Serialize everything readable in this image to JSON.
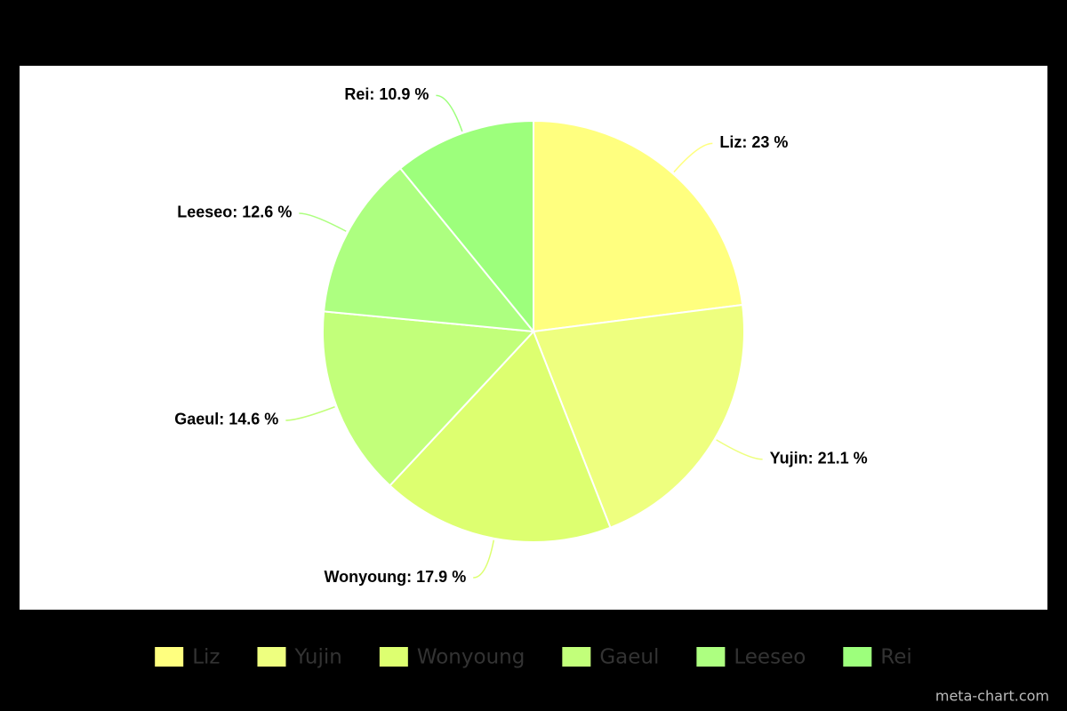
{
  "chart_data": {
    "type": "pie",
    "categories": [
      "Liz",
      "Yujin",
      "Wonyoung",
      "Gaeul",
      "Leeseo",
      "Rei"
    ],
    "values": [
      23,
      21.1,
      17.9,
      14.6,
      12.6,
      10.9
    ],
    "value_labels": [
      "Liz: 23 %",
      "Yujin: 21.1 %",
      "Wonyoung: 17.9 %",
      "Gaeul: 14.6 %",
      "Leeseo: 12.6 %",
      "Rei: 10.9 %"
    ],
    "colors": [
      "#ffff7f",
      "#eeff7f",
      "#ddff70",
      "#c2ff7a",
      "#adff80",
      "#9dff7c"
    ],
    "legend": "bottom",
    "credit": "meta-chart.com"
  }
}
